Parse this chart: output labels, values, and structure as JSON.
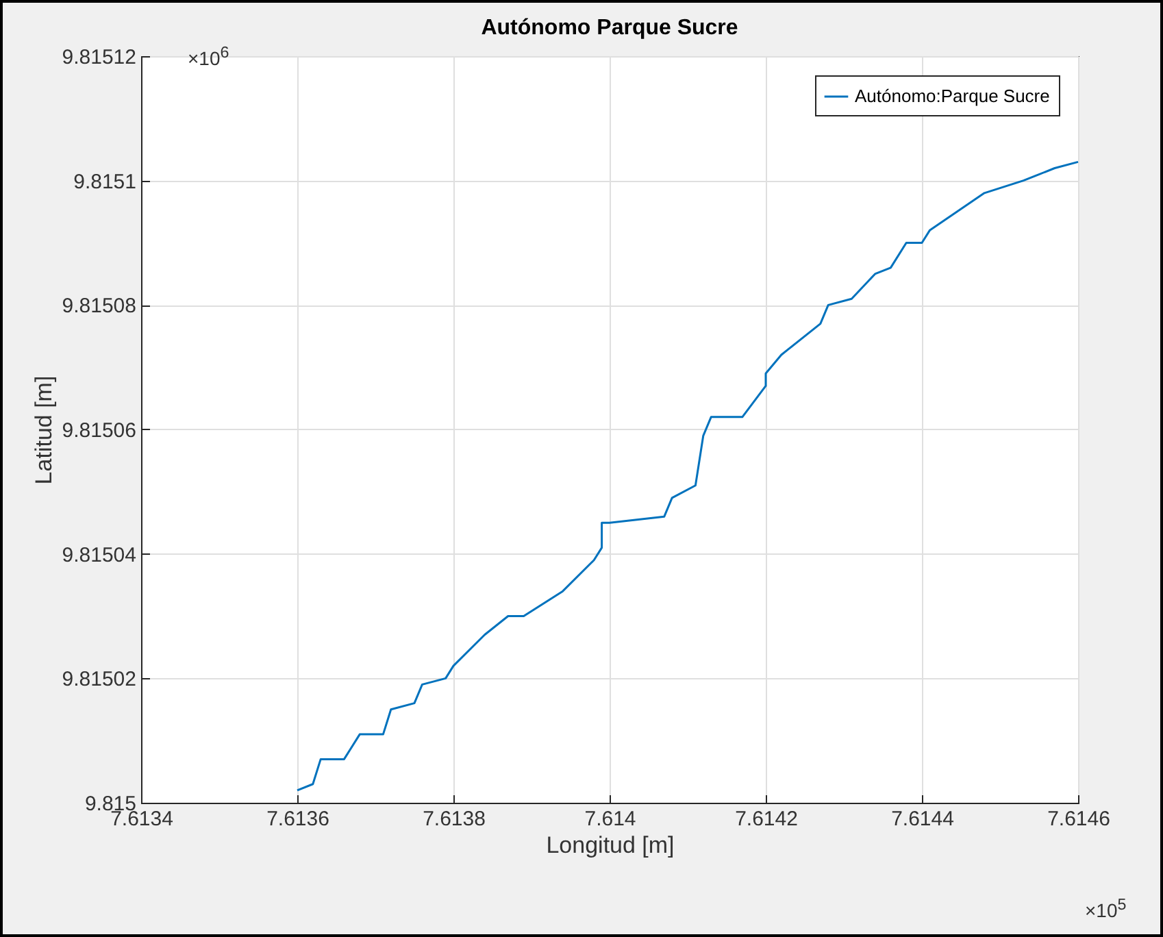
{
  "chart_data": {
    "type": "line",
    "title": "Autónomo Parque Sucre",
    "xlabel": "Longitud [m]",
    "ylabel": "Latitud [m]",
    "annotations": [
      "×10$^{6}$",
      "×10$^{5}$"
    ],
    "xlim": [
      7.6134,
      7.6146
    ],
    "xticks": [
      7.6134,
      7.6136,
      7.6138,
      7.614,
      7.6142,
      7.6144,
      7.6146
    ],
    "ylim": [
      9.815,
      9.81512
    ],
    "yticks": [
      9.815,
      9.81502,
      9.81504,
      9.81506,
      9.81508,
      9.8151,
      9.81512
    ],
    "grid": true,
    "legend": "top right",
    "line_style": "solid",
    "marker": "none",
    "series": [
      {
        "name": "Autónomo:Parque Sucre",
        "color": "#0072bd",
        "x": [
          7.6136,
          7.61362,
          7.61363,
          7.61366,
          7.61368,
          7.61371,
          7.61372,
          7.61375,
          7.61376,
          7.61379,
          7.6138,
          7.61384,
          7.61387,
          7.61389,
          7.61394,
          7.61398,
          7.61399,
          7.61399,
          7.614,
          7.61407,
          7.61408,
          7.61411,
          7.61412,
          7.61413,
          7.61417,
          7.6142,
          7.6142,
          7.61422,
          7.61423,
          7.61427,
          7.61428,
          7.61431,
          7.61434,
          7.61436,
          7.61438,
          7.6144,
          7.61441,
          7.61448,
          7.61453,
          7.61457,
          7.6146
        ],
        "values": [
          9.815002,
          9.815003,
          9.815007,
          9.815007,
          9.815011,
          9.815011,
          9.815015,
          9.815016,
          9.815019,
          9.81502,
          9.815022,
          9.815027,
          9.81503,
          9.81503,
          9.815034,
          9.815039,
          9.815041,
          9.815045,
          9.815045,
          9.815046,
          9.815049,
          9.815051,
          9.815059,
          9.815062,
          9.815062,
          9.815067,
          9.815069,
          9.815072,
          9.815073,
          9.815077,
          9.81508,
          9.815081,
          9.815085,
          9.815086,
          9.81509,
          9.81509,
          9.815092,
          9.815098,
          9.8151,
          9.815102,
          9.815103
        ]
      }
    ]
  }
}
